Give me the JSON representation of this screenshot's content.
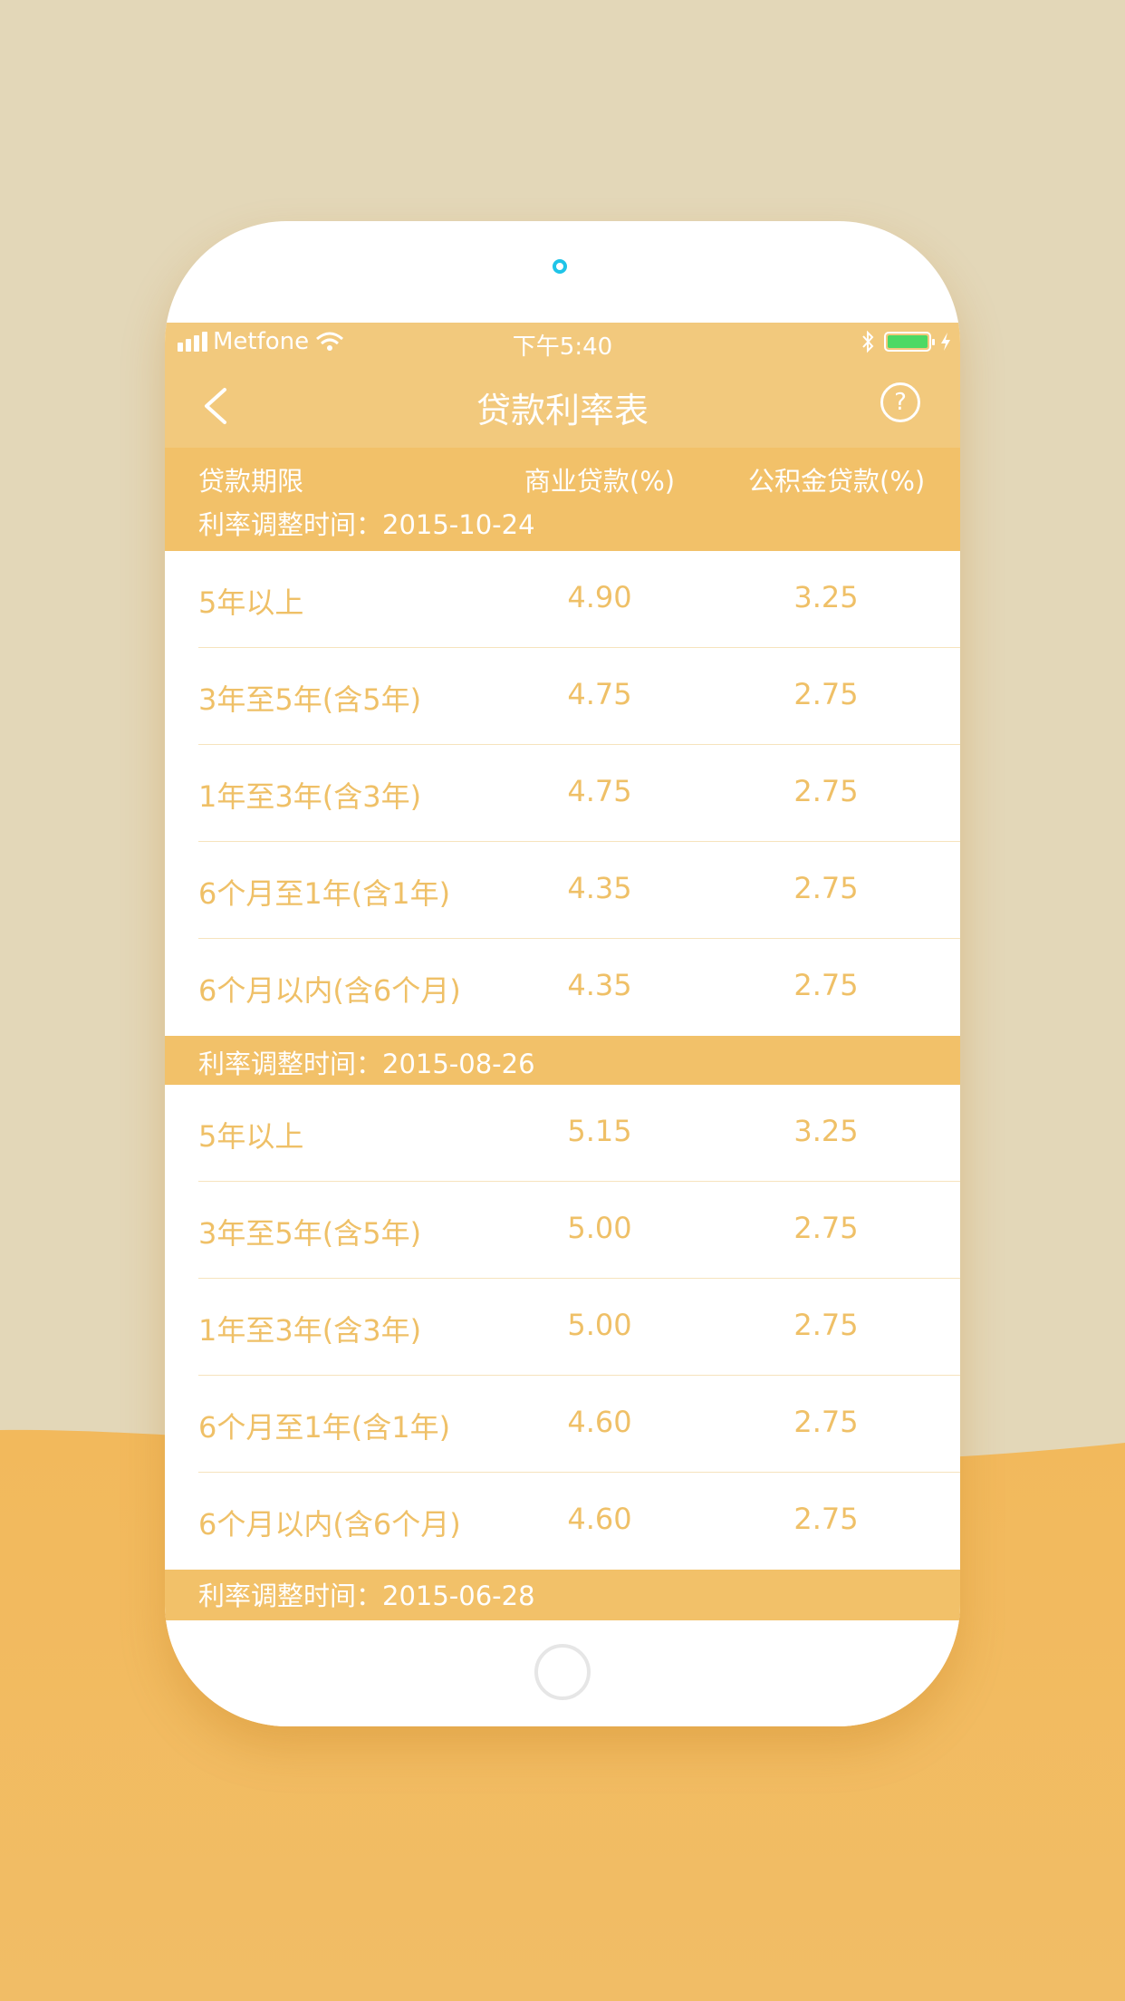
{
  "statusbar": {
    "carrier": "Metfone",
    "time": "下午5:40",
    "battery_color": "#4cd964"
  },
  "navbar": {
    "title": "贷款利率表",
    "back_icon": "chevron-left-icon",
    "help_icon": "question-circle-icon",
    "help_glyph": "?"
  },
  "table": {
    "headers": [
      "贷款期限",
      "商业贷款(%)",
      "公积金贷款(%)"
    ],
    "sections": [
      {
        "label": "利率调整时间：2015-10-24",
        "rows": [
          {
            "term": "5年以上",
            "commercial": "4.90",
            "fund": "3.25"
          },
          {
            "term": "3年至5年(含5年)",
            "commercial": "4.75",
            "fund": "2.75"
          },
          {
            "term": "1年至3年(含3年)",
            "commercial": "4.75",
            "fund": "2.75"
          },
          {
            "term": "6个月至1年(含1年)",
            "commercial": "4.35",
            "fund": "2.75"
          },
          {
            "term": "6个月以内(含6个月)",
            "commercial": "4.35",
            "fund": "2.75"
          }
        ]
      },
      {
        "label": "利率调整时间：2015-08-26",
        "rows": [
          {
            "term": "5年以上",
            "commercial": "5.15",
            "fund": "3.25"
          },
          {
            "term": "3年至5年(含5年)",
            "commercial": "5.00",
            "fund": "2.75"
          },
          {
            "term": "1年至3年(含3年)",
            "commercial": "5.00",
            "fund": "2.75"
          },
          {
            "term": "6个月至1年(含1年)",
            "commercial": "4.60",
            "fund": "2.75"
          },
          {
            "term": "6个月以内(含6个月)",
            "commercial": "4.60",
            "fund": "2.75"
          }
        ]
      },
      {
        "label": "利率调整时间：2015-06-28",
        "rows": []
      }
    ]
  },
  "colors": {
    "accent": "#f2c169",
    "text_rate": "#efc067",
    "background_top": "#e3d7b8",
    "background_bottom": "#f1bb62"
  }
}
